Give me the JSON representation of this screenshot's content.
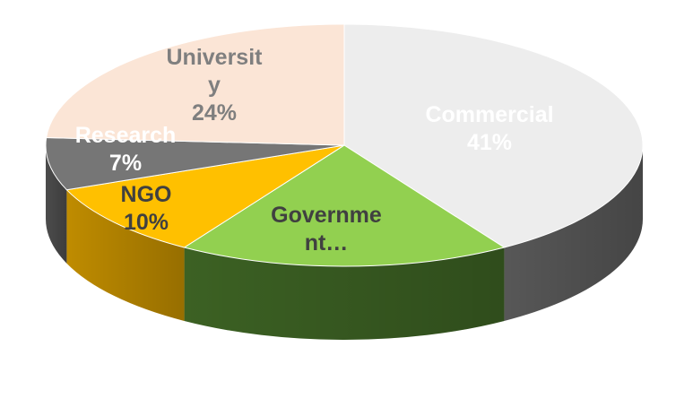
{
  "chart_data": {
    "type": "pie",
    "style": "3d",
    "title": "",
    "slices": [
      {
        "category": "Commercial",
        "value": 41,
        "label_lines": [
          "Commercial",
          "41%"
        ],
        "color": "#EDEDED",
        "side_color": "#5C5C5C",
        "text_color": "#FFFFFF"
      },
      {
        "category": "Government",
        "value": 18,
        "label_lines": [
          "Governme",
          "nt…"
        ],
        "color": "#92D050",
        "side_color": "#3F6625",
        "text_color": "#404040"
      },
      {
        "category": "NGO",
        "value": 10,
        "label_lines": [
          "NGO",
          "10%"
        ],
        "color": "#FFC000",
        "side_color": "#C99300",
        "text_color": "#404040"
      },
      {
        "category": "Research",
        "value": 7,
        "label_lines": [
          "Research",
          "7%"
        ],
        "color": "#767676",
        "side_color": "#505050",
        "text_color": "#FFFFFF"
      },
      {
        "category": "University",
        "value": 24,
        "label_lines": [
          "Universit",
          "y",
          "24%"
        ],
        "color": "#FBE5D6",
        "side_color": "#E6C8B2",
        "text_color": "#7F7F7F"
      }
    ],
    "legend": "none",
    "data_labels": "inside"
  }
}
